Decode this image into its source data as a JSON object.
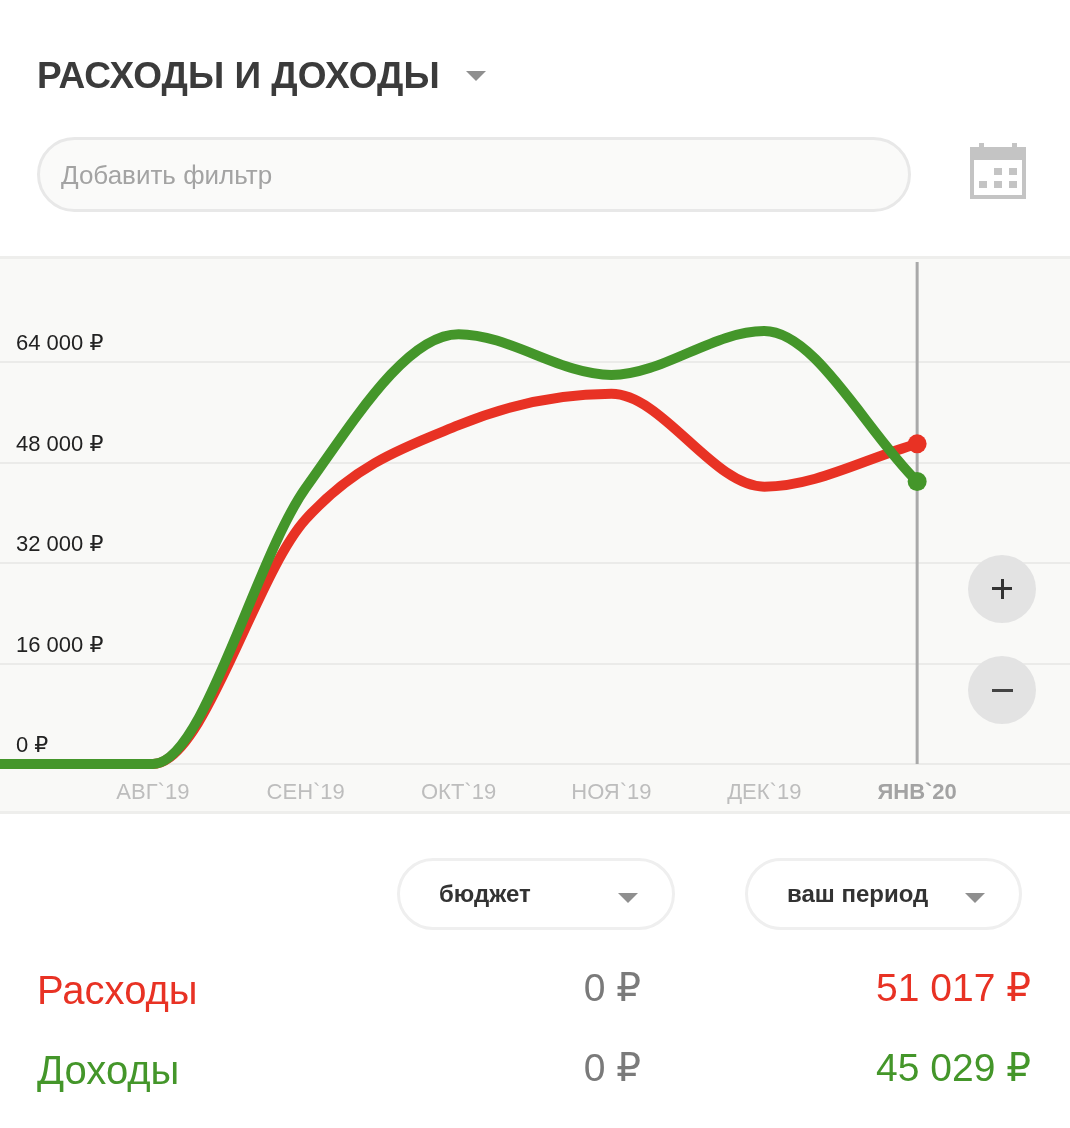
{
  "chart_data": {
    "type": "line",
    "title": "РАСХОДЫ И ДОХОДЫ",
    "categories": [
      null,
      "АВГ`19",
      "СЕН`19",
      "ОКТ`19",
      "НОЯ`19",
      "ДЕК`19",
      "ЯНВ`20",
      null
    ],
    "series": [
      {
        "name": "Расходы",
        "color": "#e83224",
        "values": [
          0,
          0,
          39000,
          54000,
          59000,
          44200,
          51017,
          null
        ]
      },
      {
        "name": "Доходы",
        "color": "#44962a",
        "values": [
          0,
          0,
          44000,
          68500,
          62000,
          69000,
          45029,
          null
        ]
      }
    ],
    "ylim": [
      0,
      80000
    ],
    "yticks": [
      {
        "value": 0,
        "label": "0 ₽"
      },
      {
        "value": 16000,
        "label": "16 000 ₽"
      },
      {
        "value": 32000,
        "label": "32 000 ₽"
      },
      {
        "value": 48000,
        "label": "48 000 ₽"
      },
      {
        "value": 64000,
        "label": "64 000 ₽"
      }
    ],
    "grid": "y",
    "legend": "bottom",
    "ref_lines": [
      {
        "axis": "x",
        "value": "ЯНВ`20",
        "color": "#a9a9a9"
      }
    ],
    "annotations": [
      "Добавить фильтр",
      "бюджет",
      "ваш период",
      "0 ₽",
      "51 017 ₽",
      "0 ₽",
      "45 029 ₽"
    ]
  }
}
